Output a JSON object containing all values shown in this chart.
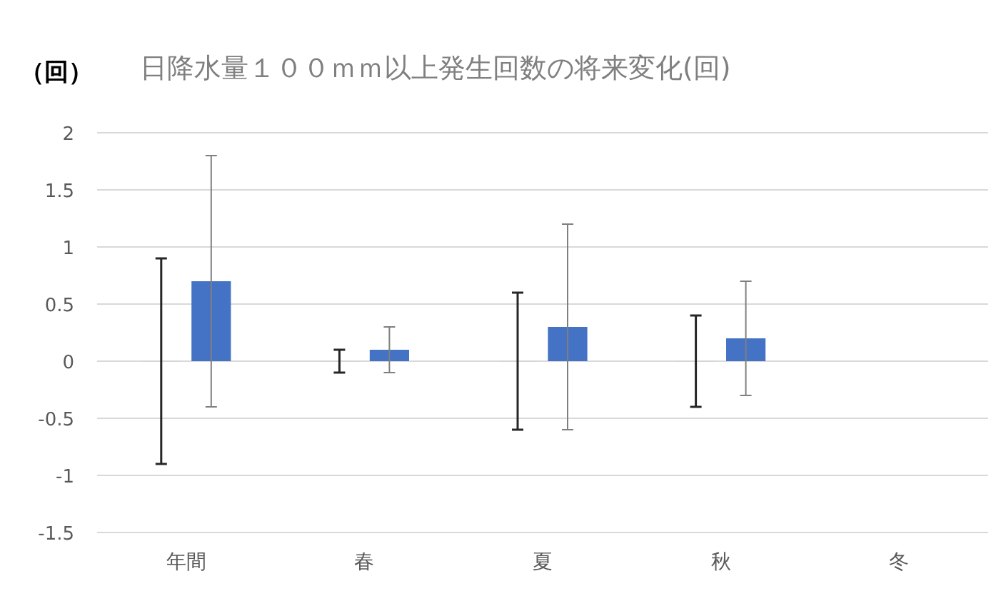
{
  "chart_data": {
    "type": "bar",
    "title": "日降水量１００ｍｍ以上発生回数の将来変化(回)",
    "ylabel": "（回）",
    "categories": [
      "年間",
      "春",
      "夏",
      "秋",
      "冬"
    ],
    "series": [
      {
        "color": "#262626",
        "values": [
          0,
          0,
          0,
          0,
          null
        ],
        "errors": [
          0.9,
          0.1,
          0.6,
          0.4,
          null
        ]
      },
      {
        "color": "#4472c4",
        "values": [
          0.7,
          0.1,
          0.3,
          0.2,
          null
        ],
        "errors": [
          [
            -0.4,
            1.8
          ],
          [
            -0.1,
            0.3
          ],
          [
            -0.6,
            1.2
          ],
          [
            -0.3,
            0.7
          ],
          null
        ]
      }
    ],
    "ylim": [
      -1.5,
      2
    ],
    "yticks": [
      -1.5,
      -1,
      -0.5,
      0,
      0.5,
      1,
      1.5,
      2
    ],
    "grid": "y",
    "legend": false
  }
}
